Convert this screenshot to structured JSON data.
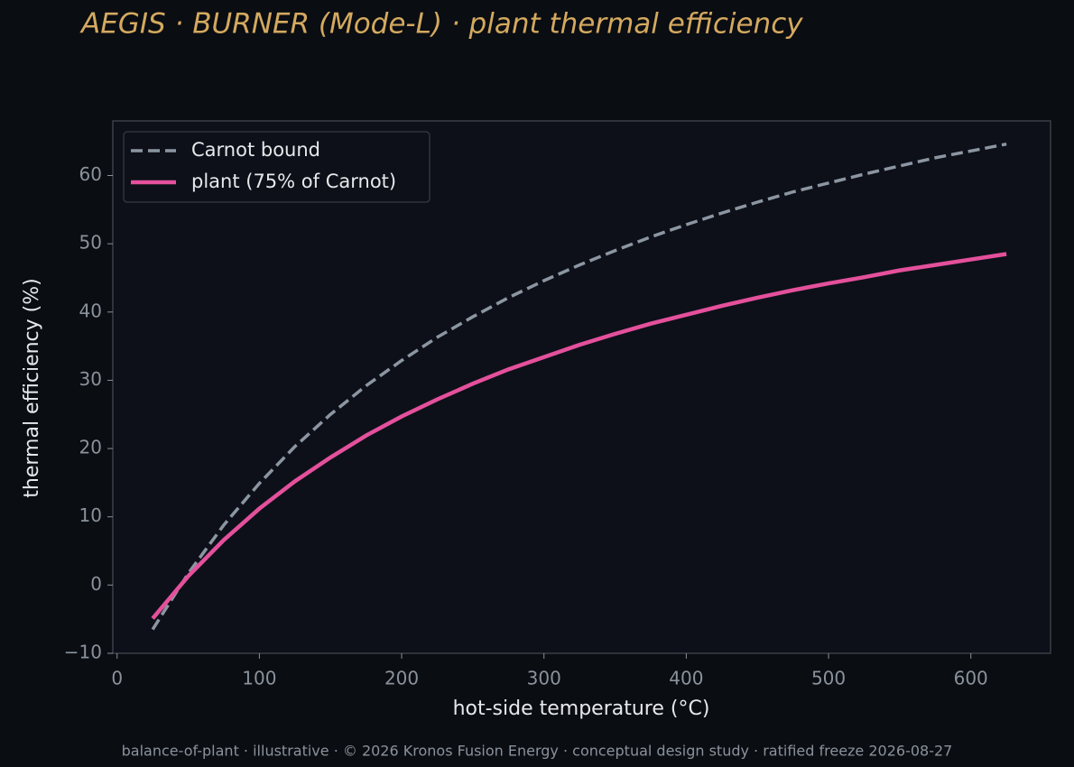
{
  "chart_data": {
    "type": "line",
    "title": "AEGIS · BURNER (Mode-L)  ·  plant thermal efficiency",
    "x_label": "hot-side temperature (°C)",
    "y_label": "thermal efficiency (%)",
    "footer": "balance-of-plant · illustrative · © 2026 Kronos Fusion Energy · conceptual design study · ratified freeze 2026-08-27",
    "x": [
      25,
      50,
      75,
      100,
      125,
      150,
      175,
      200,
      225,
      250,
      275,
      300,
      325,
      350,
      375,
      400,
      425,
      450,
      475,
      500,
      525,
      550,
      575,
      600,
      625
    ],
    "series": [
      {
        "name": "Carnot bound",
        "color": "#8c96a2",
        "dashed": true,
        "values": [
          -6.5,
          1.7,
          8.8,
          14.9,
          20.3,
          25.0,
          29.2,
          32.9,
          36.3,
          39.3,
          42.1,
          44.6,
          46.9,
          49.0,
          51.0,
          52.8,
          54.5,
          56.1,
          57.6,
          58.9,
          60.2,
          61.4,
          62.6,
          63.6,
          64.6
        ]
      },
      {
        "name": "plant (75% of Carnot)",
        "color": "#e4509c",
        "dashed": false,
        "values": [
          -4.9,
          1.3,
          6.6,
          11.2,
          15.2,
          18.7,
          21.9,
          24.7,
          27.2,
          29.5,
          31.6,
          33.4,
          35.2,
          36.8,
          38.3,
          39.6,
          40.9,
          42.1,
          43.2,
          44.2,
          45.1,
          46.1,
          46.9,
          47.7,
          48.5
        ]
      }
    ],
    "xlim": [
      -3,
      656
    ],
    "ylim": [
      -10,
      68
    ],
    "xticks": [
      0,
      100,
      200,
      300,
      400,
      500,
      600
    ],
    "yticks": [
      {
        "value": -10,
        "label": "−10"
      },
      0,
      10,
      20,
      30,
      40,
      50,
      60
    ],
    "legend": "upper left"
  }
}
